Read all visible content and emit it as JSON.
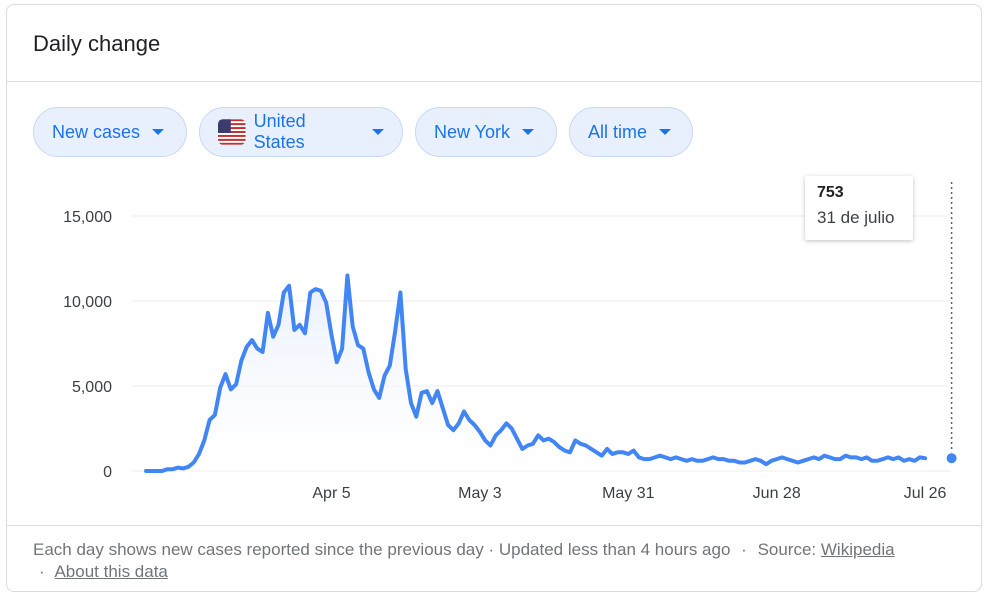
{
  "card": {
    "title": "Daily change"
  },
  "filters": [
    {
      "label": "New cases"
    },
    {
      "label": "United States",
      "icon": "us-flag-icon"
    },
    {
      "label": "New York"
    },
    {
      "label": "All time"
    }
  ],
  "tooltip": {
    "value": "753",
    "date": "31 de julio"
  },
  "footer": {
    "text": "Each day shows new cases reported since the previous day · Updated less than 4 hours ago",
    "sep": "·",
    "source_label": "Source:",
    "source_link": "Wikipedia",
    "about_link": "About this data"
  },
  "colors": {
    "line": "#4285f4",
    "area_top": "#e8effc",
    "accent": "#1a73e8"
  },
  "chart_data": {
    "type": "area",
    "x_tick_labels": [
      "Apr 5",
      "May 3",
      "May 31",
      "Jun 28",
      "Jul 26"
    ],
    "y_tick_labels": [
      "15,000",
      "10,000",
      "5,000",
      "0"
    ],
    "y_ticks": [
      15000,
      10000,
      5000,
      0
    ],
    "ylim": [
      0,
      16000
    ],
    "grid": true,
    "series": [
      {
        "x_start": "2020-03-01",
        "x_end": "2020-07-31",
        "values": [
          0,
          0,
          0,
          0,
          100,
          100,
          200,
          150,
          250,
          500,
          1000,
          1800,
          3000,
          3300,
          4900,
          5700,
          4800,
          5100,
          6500,
          7300,
          7700,
          7200,
          7000,
          9300,
          7900,
          8600,
          10500,
          10900,
          8300,
          8600,
          8100,
          10500,
          10700,
          10600,
          9900,
          8000,
          6400,
          7200,
          11500,
          8500,
          7400,
          7200,
          5800,
          4800,
          4300,
          5600,
          6200,
          8200,
          10500,
          6000,
          4000,
          3200,
          4600,
          4700,
          4000,
          4700,
          3700,
          2700,
          2400,
          2800,
          3500,
          3000,
          2700,
          2300,
          1800,
          1500,
          2100,
          2400,
          2800,
          2500,
          1900,
          1300,
          1500,
          1600,
          2100,
          1800,
          1900,
          1700,
          1400,
          1200,
          1100,
          1800,
          1600,
          1500,
          1300,
          1100,
          900,
          1300,
          1000,
          1100,
          1100,
          1000,
          1200,
          800,
          700,
          700,
          800,
          900,
          800,
          700,
          800,
          700,
          600,
          700,
          600,
          600,
          700,
          800,
          700,
          700,
          600,
          600,
          500,
          500,
          600,
          700,
          600,
          400,
          600,
          700,
          800,
          700,
          600,
          500,
          600,
          700,
          800,
          700,
          900,
          800,
          700,
          700,
          900,
          800,
          800,
          700,
          800,
          600,
          600,
          700,
          800,
          700,
          800,
          600,
          700,
          600,
          800,
          753
        ]
      }
    ],
    "tooltip_point": {
      "x": "2020-07-31",
      "y": 753
    }
  }
}
